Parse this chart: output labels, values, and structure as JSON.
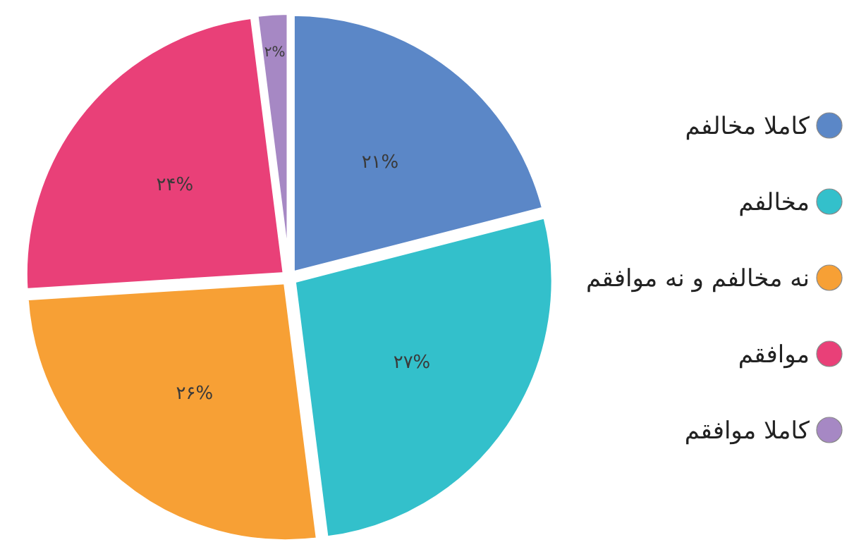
{
  "chart_data": {
    "type": "pie",
    "categories": [
      "کاملا مخالفم",
      "مخالفم",
      "نه مخالفم و نه موافقم",
      "موافقم",
      "کاملا موافقم"
    ],
    "values": [
      21,
      27,
      26,
      24,
      2
    ],
    "value_labels": [
      "۲۱%",
      "۲۷%",
      "۲۶%",
      "۲۴%",
      "۲%"
    ],
    "colors": [
      "#5b87c7",
      "#33c0cb",
      "#f7a035",
      "#e94078",
      "#a688c4"
    ],
    "legend": "right"
  }
}
